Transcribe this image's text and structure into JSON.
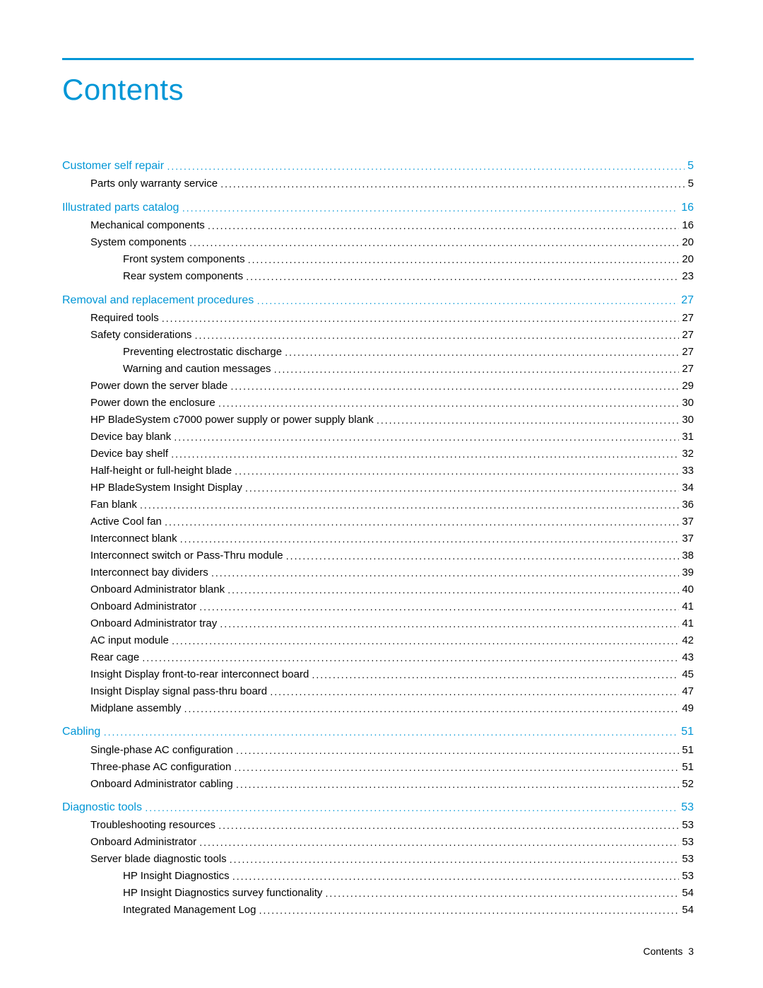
{
  "title": "Contents",
  "footer": {
    "label": "Contents",
    "page": "3"
  },
  "colors": {
    "accent": "#0096d6",
    "text": "#000000",
    "background": "#ffffff"
  },
  "sections": [
    {
      "label": "Customer self repair",
      "page": "5",
      "items": [
        {
          "label": "Parts only warranty service",
          "page": "5",
          "level": 1
        }
      ]
    },
    {
      "label": "Illustrated parts catalog",
      "page": "16",
      "items": [
        {
          "label": "Mechanical components",
          "page": "16",
          "level": 1
        },
        {
          "label": "System components",
          "page": "20",
          "level": 1
        },
        {
          "label": "Front system components",
          "page": "20",
          "level": 2
        },
        {
          "label": "Rear system components",
          "page": "23",
          "level": 2
        }
      ]
    },
    {
      "label": "Removal and replacement procedures",
      "page": "27",
      "items": [
        {
          "label": "Required tools",
          "page": "27",
          "level": 1
        },
        {
          "label": "Safety considerations",
          "page": "27",
          "level": 1
        },
        {
          "label": "Preventing electrostatic discharge",
          "page": "27",
          "level": 2
        },
        {
          "label": "Warning and caution messages",
          "page": "27",
          "level": 2
        },
        {
          "label": "Power down the server blade",
          "page": "29",
          "level": 1
        },
        {
          "label": "Power down the enclosure",
          "page": "30",
          "level": 1
        },
        {
          "label": "HP BladeSystem c7000 power supply or power supply blank",
          "page": "30",
          "level": 1
        },
        {
          "label": "Device bay blank",
          "page": "31",
          "level": 1
        },
        {
          "label": "Device bay shelf",
          "page": "32",
          "level": 1
        },
        {
          "label": "Half-height or full-height blade",
          "page": "33",
          "level": 1
        },
        {
          "label": "HP BladeSystem Insight Display",
          "page": "34",
          "level": 1
        },
        {
          "label": "Fan blank",
          "page": "36",
          "level": 1
        },
        {
          "label": "Active Cool fan",
          "page": "37",
          "level": 1
        },
        {
          "label": "Interconnect blank",
          "page": "37",
          "level": 1
        },
        {
          "label": "Interconnect switch or Pass-Thru module",
          "page": "38",
          "level": 1
        },
        {
          "label": "Interconnect bay dividers",
          "page": "39",
          "level": 1
        },
        {
          "label": "Onboard Administrator blank",
          "page": "40",
          "level": 1
        },
        {
          "label": "Onboard Administrator",
          "page": "41",
          "level": 1
        },
        {
          "label": "Onboard Administrator tray",
          "page": "41",
          "level": 1
        },
        {
          "label": "AC input module",
          "page": "42",
          "level": 1
        },
        {
          "label": "Rear cage",
          "page": "43",
          "level": 1
        },
        {
          "label": "Insight Display front-to-rear interconnect board",
          "page": "45",
          "level": 1
        },
        {
          "label": "Insight Display signal pass-thru board",
          "page": "47",
          "level": 1
        },
        {
          "label": "Midplane assembly",
          "page": "49",
          "level": 1
        }
      ]
    },
    {
      "label": "Cabling",
      "page": "51",
      "items": [
        {
          "label": "Single-phase AC configuration",
          "page": "51",
          "level": 1
        },
        {
          "label": "Three-phase AC configuration",
          "page": "51",
          "level": 1
        },
        {
          "label": "Onboard Administrator cabling",
          "page": "52",
          "level": 1
        }
      ]
    },
    {
      "label": "Diagnostic tools",
      "page": "53",
      "items": [
        {
          "label": "Troubleshooting resources",
          "page": "53",
          "level": 1
        },
        {
          "label": "Onboard Administrator",
          "page": "53",
          "level": 1
        },
        {
          "label": "Server blade diagnostic tools",
          "page": "53",
          "level": 1
        },
        {
          "label": "HP Insight Diagnostics",
          "page": "53",
          "level": 2
        },
        {
          "label": "HP Insight Diagnostics survey functionality",
          "page": "54",
          "level": 2
        },
        {
          "label": "Integrated Management Log",
          "page": "54",
          "level": 2
        }
      ]
    }
  ]
}
